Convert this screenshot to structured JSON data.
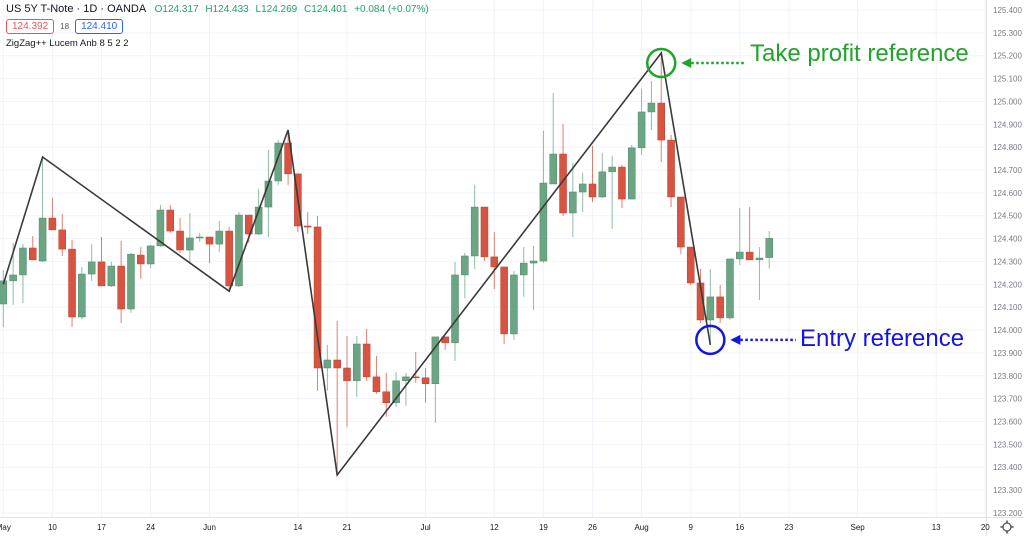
{
  "header": {
    "symbol": "US 5Y T-Note · 1D · OANDA",
    "open_label": "O124.317",
    "high_label": "H124.433",
    "low_label": "L124.269",
    "close_label": "C124.401",
    "change": "+0.084 (+0.07%)",
    "sell_price": "124.392",
    "spread": "18",
    "buy_price": "124.410",
    "indicator": "ZigZag++ Lucem Anb 8 5 2 2"
  },
  "annotations": {
    "take_profit": {
      "text": "Take profit reference",
      "color": "#22a32a"
    },
    "entry": {
      "text": "Entry reference",
      "color": "#1414e6"
    }
  },
  "colors": {
    "up": "#6ba583",
    "down": "#d75442",
    "zigzag": "#3a3a3a",
    "grid": "#f0f3fa",
    "axis_text": "#787b86"
  },
  "icons": {
    "settings": "gear-icon"
  },
  "chart_data": {
    "type": "candlestick",
    "title": "",
    "xlabel": "",
    "ylabel": "",
    "ylim": [
      123.2,
      125.4
    ],
    "grid": true,
    "y_ticks": [
      "125.400",
      "125.300",
      "125.200",
      "125.100",
      "125.000",
      "124.900",
      "124.800",
      "124.700",
      "124.600",
      "124.500",
      "124.400",
      "124.300",
      "124.200",
      "124.100",
      "124.000",
      "123.900",
      "123.800",
      "123.700",
      "123.600",
      "123.500",
      "123.400",
      "123.300",
      "123.200"
    ],
    "x_ticks": [
      {
        "label": "May",
        "date": "2021-05-03"
      },
      {
        "label": "10",
        "date": "2021-05-10"
      },
      {
        "label": "17",
        "date": "2021-05-17"
      },
      {
        "label": "24",
        "date": "2021-05-24"
      },
      {
        "label": "Jun",
        "date": "2021-06-01"
      },
      {
        "label": "14",
        "date": "2021-06-14"
      },
      {
        "label": "21",
        "date": "2021-06-21"
      },
      {
        "label": "Jul",
        "date": "2021-07-01"
      },
      {
        "label": "12",
        "date": "2021-07-12"
      },
      {
        "label": "19",
        "date": "2021-07-19"
      },
      {
        "label": "26",
        "date": "2021-07-26"
      },
      {
        "label": "Aug",
        "date": "2021-08-02"
      },
      {
        "label": "9",
        "date": "2021-08-09"
      },
      {
        "label": "16",
        "date": "2021-08-16"
      },
      {
        "label": "23",
        "date": "2021-08-23"
      },
      {
        "label": "Sep",
        "date": "2021-09-01"
      },
      {
        "label": "13",
        "date": "2021-09-13"
      },
      {
        "label": "20",
        "date": "2021-09-20"
      }
    ],
    "candles_format": [
      "date",
      "open",
      "high",
      "low",
      "close"
    ],
    "candles": [
      [
        "2021-05-03",
        124.114,
        124.263,
        124.013,
        124.215
      ],
      [
        "2021-05-04",
        124.215,
        124.381,
        124.11,
        124.241
      ],
      [
        "2021-05-05",
        124.241,
        124.376,
        124.118,
        124.359
      ],
      [
        "2021-05-06",
        124.359,
        124.411,
        124.307,
        124.307
      ],
      [
        "2021-05-07",
        124.302,
        124.757,
        124.298,
        124.49
      ],
      [
        "2021-05-10",
        124.49,
        124.578,
        124.438,
        124.438
      ],
      [
        "2021-05-11",
        124.438,
        124.508,
        124.324,
        124.354
      ],
      [
        "2021-05-12",
        124.354,
        124.394,
        124.013,
        124.057
      ],
      [
        "2021-05-13",
        124.057,
        124.276,
        124.048,
        124.245
      ],
      [
        "2021-05-14",
        124.245,
        124.376,
        124.215,
        124.298
      ],
      [
        "2021-05-17",
        124.298,
        124.407,
        124.193,
        124.193
      ],
      [
        "2021-05-18",
        124.193,
        124.298,
        124.188,
        124.28
      ],
      [
        "2021-05-19",
        124.28,
        124.39,
        124.031,
        124.092
      ],
      [
        "2021-05-20",
        124.092,
        124.337,
        124.075,
        124.332
      ],
      [
        "2021-05-21",
        124.328,
        124.363,
        124.223,
        124.289
      ],
      [
        "2021-05-24",
        124.289,
        124.372,
        124.271,
        124.368
      ],
      [
        "2021-05-25",
        124.368,
        124.547,
        124.363,
        124.525
      ],
      [
        "2021-05-26",
        124.525,
        124.547,
        124.425,
        124.433
      ],
      [
        "2021-05-27",
        124.433,
        124.49,
        124.337,
        124.35
      ],
      [
        "2021-05-28",
        124.35,
        124.512,
        124.289,
        124.403
      ],
      [
        "2021-05-31",
        124.403,
        124.425,
        124.385,
        124.407
      ],
      [
        "2021-06-01",
        124.407,
        124.407,
        124.293,
        124.376
      ],
      [
        "2021-06-02",
        124.376,
        124.477,
        124.341,
        124.433
      ],
      [
        "2021-06-03",
        124.433,
        124.451,
        124.17,
        124.193
      ],
      [
        "2021-06-04",
        124.193,
        124.516,
        124.188,
        124.503
      ],
      [
        "2021-06-07",
        124.503,
        124.503,
        124.381,
        124.42
      ],
      [
        "2021-06-08",
        124.42,
        124.617,
        124.416,
        124.538
      ],
      [
        "2021-06-09",
        124.538,
        124.788,
        124.407,
        124.652
      ],
      [
        "2021-06-10",
        124.652,
        124.831,
        124.635,
        124.818
      ],
      [
        "2021-06-11",
        124.818,
        124.875,
        124.635,
        124.683
      ],
      [
        "2021-06-14",
        124.683,
        124.683,
        124.429,
        124.455
      ],
      [
        "2021-06-15",
        124.455,
        124.516,
        124.42,
        124.451
      ],
      [
        "2021-06-16",
        124.451,
        124.499,
        123.734,
        123.834
      ],
      [
        "2021-06-17",
        123.834,
        123.935,
        123.734,
        123.869
      ],
      [
        "2021-06-18",
        123.869,
        124.04,
        123.366,
        123.834
      ],
      [
        "2021-06-21",
        123.834,
        123.974,
        123.577,
        123.778
      ],
      [
        "2021-06-22",
        123.778,
        123.974,
        123.708,
        123.939
      ],
      [
        "2021-06-23",
        123.939,
        124.005,
        123.778,
        123.795
      ],
      [
        "2021-06-24",
        123.795,
        123.887,
        123.721,
        123.73
      ],
      [
        "2021-06-25",
        123.73,
        123.813,
        123.621,
        123.682
      ],
      [
        "2021-06-28",
        123.682,
        123.817,
        123.664,
        123.778
      ],
      [
        "2021-06-29",
        123.778,
        123.813,
        123.669,
        123.795
      ],
      [
        "2021-06-30",
        123.795,
        123.904,
        123.769,
        123.791
      ],
      [
        "2021-07-01",
        123.791,
        123.834,
        123.682,
        123.765
      ],
      [
        "2021-07-02",
        123.765,
        123.97,
        123.594,
        123.97
      ],
      [
        "2021-07-05",
        123.97,
        123.97,
        123.913,
        123.944
      ],
      [
        "2021-07-06",
        123.944,
        124.298,
        123.865,
        124.241
      ],
      [
        "2021-07-07",
        124.241,
        124.337,
        124.14,
        124.324
      ],
      [
        "2021-07-08",
        124.324,
        124.635,
        124.267,
        124.538
      ],
      [
        "2021-07-09",
        124.538,
        124.538,
        124.302,
        124.32
      ],
      [
        "2021-07-12",
        124.32,
        124.429,
        124.18,
        124.276
      ],
      [
        "2021-07-13",
        124.276,
        124.276,
        123.939,
        123.983
      ],
      [
        "2021-07-14",
        123.983,
        124.258,
        123.957,
        124.241
      ],
      [
        "2021-07-15",
        124.241,
        124.363,
        124.145,
        124.293
      ],
      [
        "2021-07-16",
        124.293,
        124.368,
        124.088,
        124.302
      ],
      [
        "2021-07-19",
        124.302,
        124.871,
        124.293,
        124.643
      ],
      [
        "2021-07-20",
        124.639,
        125.037,
        124.639,
        124.77
      ],
      [
        "2021-07-21",
        124.77,
        124.902,
        124.499,
        124.512
      ],
      [
        "2021-07-22",
        124.512,
        124.731,
        124.407,
        124.604
      ],
      [
        "2021-07-23",
        124.604,
        124.687,
        124.516,
        124.639
      ],
      [
        "2021-07-26",
        124.639,
        124.805,
        124.56,
        124.582
      ],
      [
        "2021-07-27",
        124.582,
        124.775,
        124.578,
        124.692
      ],
      [
        "2021-07-28",
        124.692,
        124.762,
        124.442,
        124.713
      ],
      [
        "2021-07-29",
        124.713,
        124.722,
        124.534,
        124.573
      ],
      [
        "2021-07-30",
        124.573,
        124.81,
        124.573,
        124.797
      ],
      [
        "2021-08-02",
        124.797,
        125.055,
        124.766,
        124.954
      ],
      [
        "2021-08-03",
        124.954,
        125.09,
        124.875,
        124.993
      ],
      [
        "2021-08-04",
        124.993,
        125.212,
        124.735,
        124.831
      ],
      [
        "2021-08-05",
        124.831,
        124.853,
        124.538,
        124.582
      ],
      [
        "2021-08-06",
        124.582,
        124.582,
        124.332,
        124.363
      ],
      [
        "2021-08-09",
        124.363,
        124.363,
        124.197,
        124.206
      ],
      [
        "2021-08-10",
        124.206,
        124.267,
        124.031,
        124.044
      ],
      [
        "2021-08-11",
        124.044,
        124.267,
        123.935,
        124.145
      ],
      [
        "2021-08-12",
        124.145,
        124.197,
        124.031,
        124.053
      ],
      [
        "2021-08-13",
        124.053,
        124.311,
        124.044,
        124.311
      ],
      [
        "2021-08-16",
        124.311,
        124.534,
        124.285,
        124.341
      ],
      [
        "2021-08-17",
        124.341,
        124.538,
        124.307,
        124.307
      ],
      [
        "2021-08-18",
        124.307,
        124.363,
        124.132,
        124.315
      ],
      [
        "2021-08-19",
        124.317,
        124.433,
        124.269,
        124.401
      ]
    ],
    "zigzag": [
      {
        "date": "2021-05-03",
        "price": 124.2
      },
      {
        "date": "2021-05-07",
        "price": 124.757
      },
      {
        "date": "2021-06-03",
        "price": 124.17
      },
      {
        "date": "2021-06-11",
        "price": 124.875
      },
      {
        "date": "2021-06-18",
        "price": 123.366
      },
      {
        "date": "2021-08-04",
        "price": 125.212
      },
      {
        "date": "2021-08-11",
        "price": 123.935
      }
    ],
    "markers": [
      {
        "name": "take-profit",
        "date": "2021-08-04",
        "price": 125.212
      },
      {
        "name": "entry",
        "date": "2021-08-11",
        "price": 123.935
      }
    ]
  }
}
